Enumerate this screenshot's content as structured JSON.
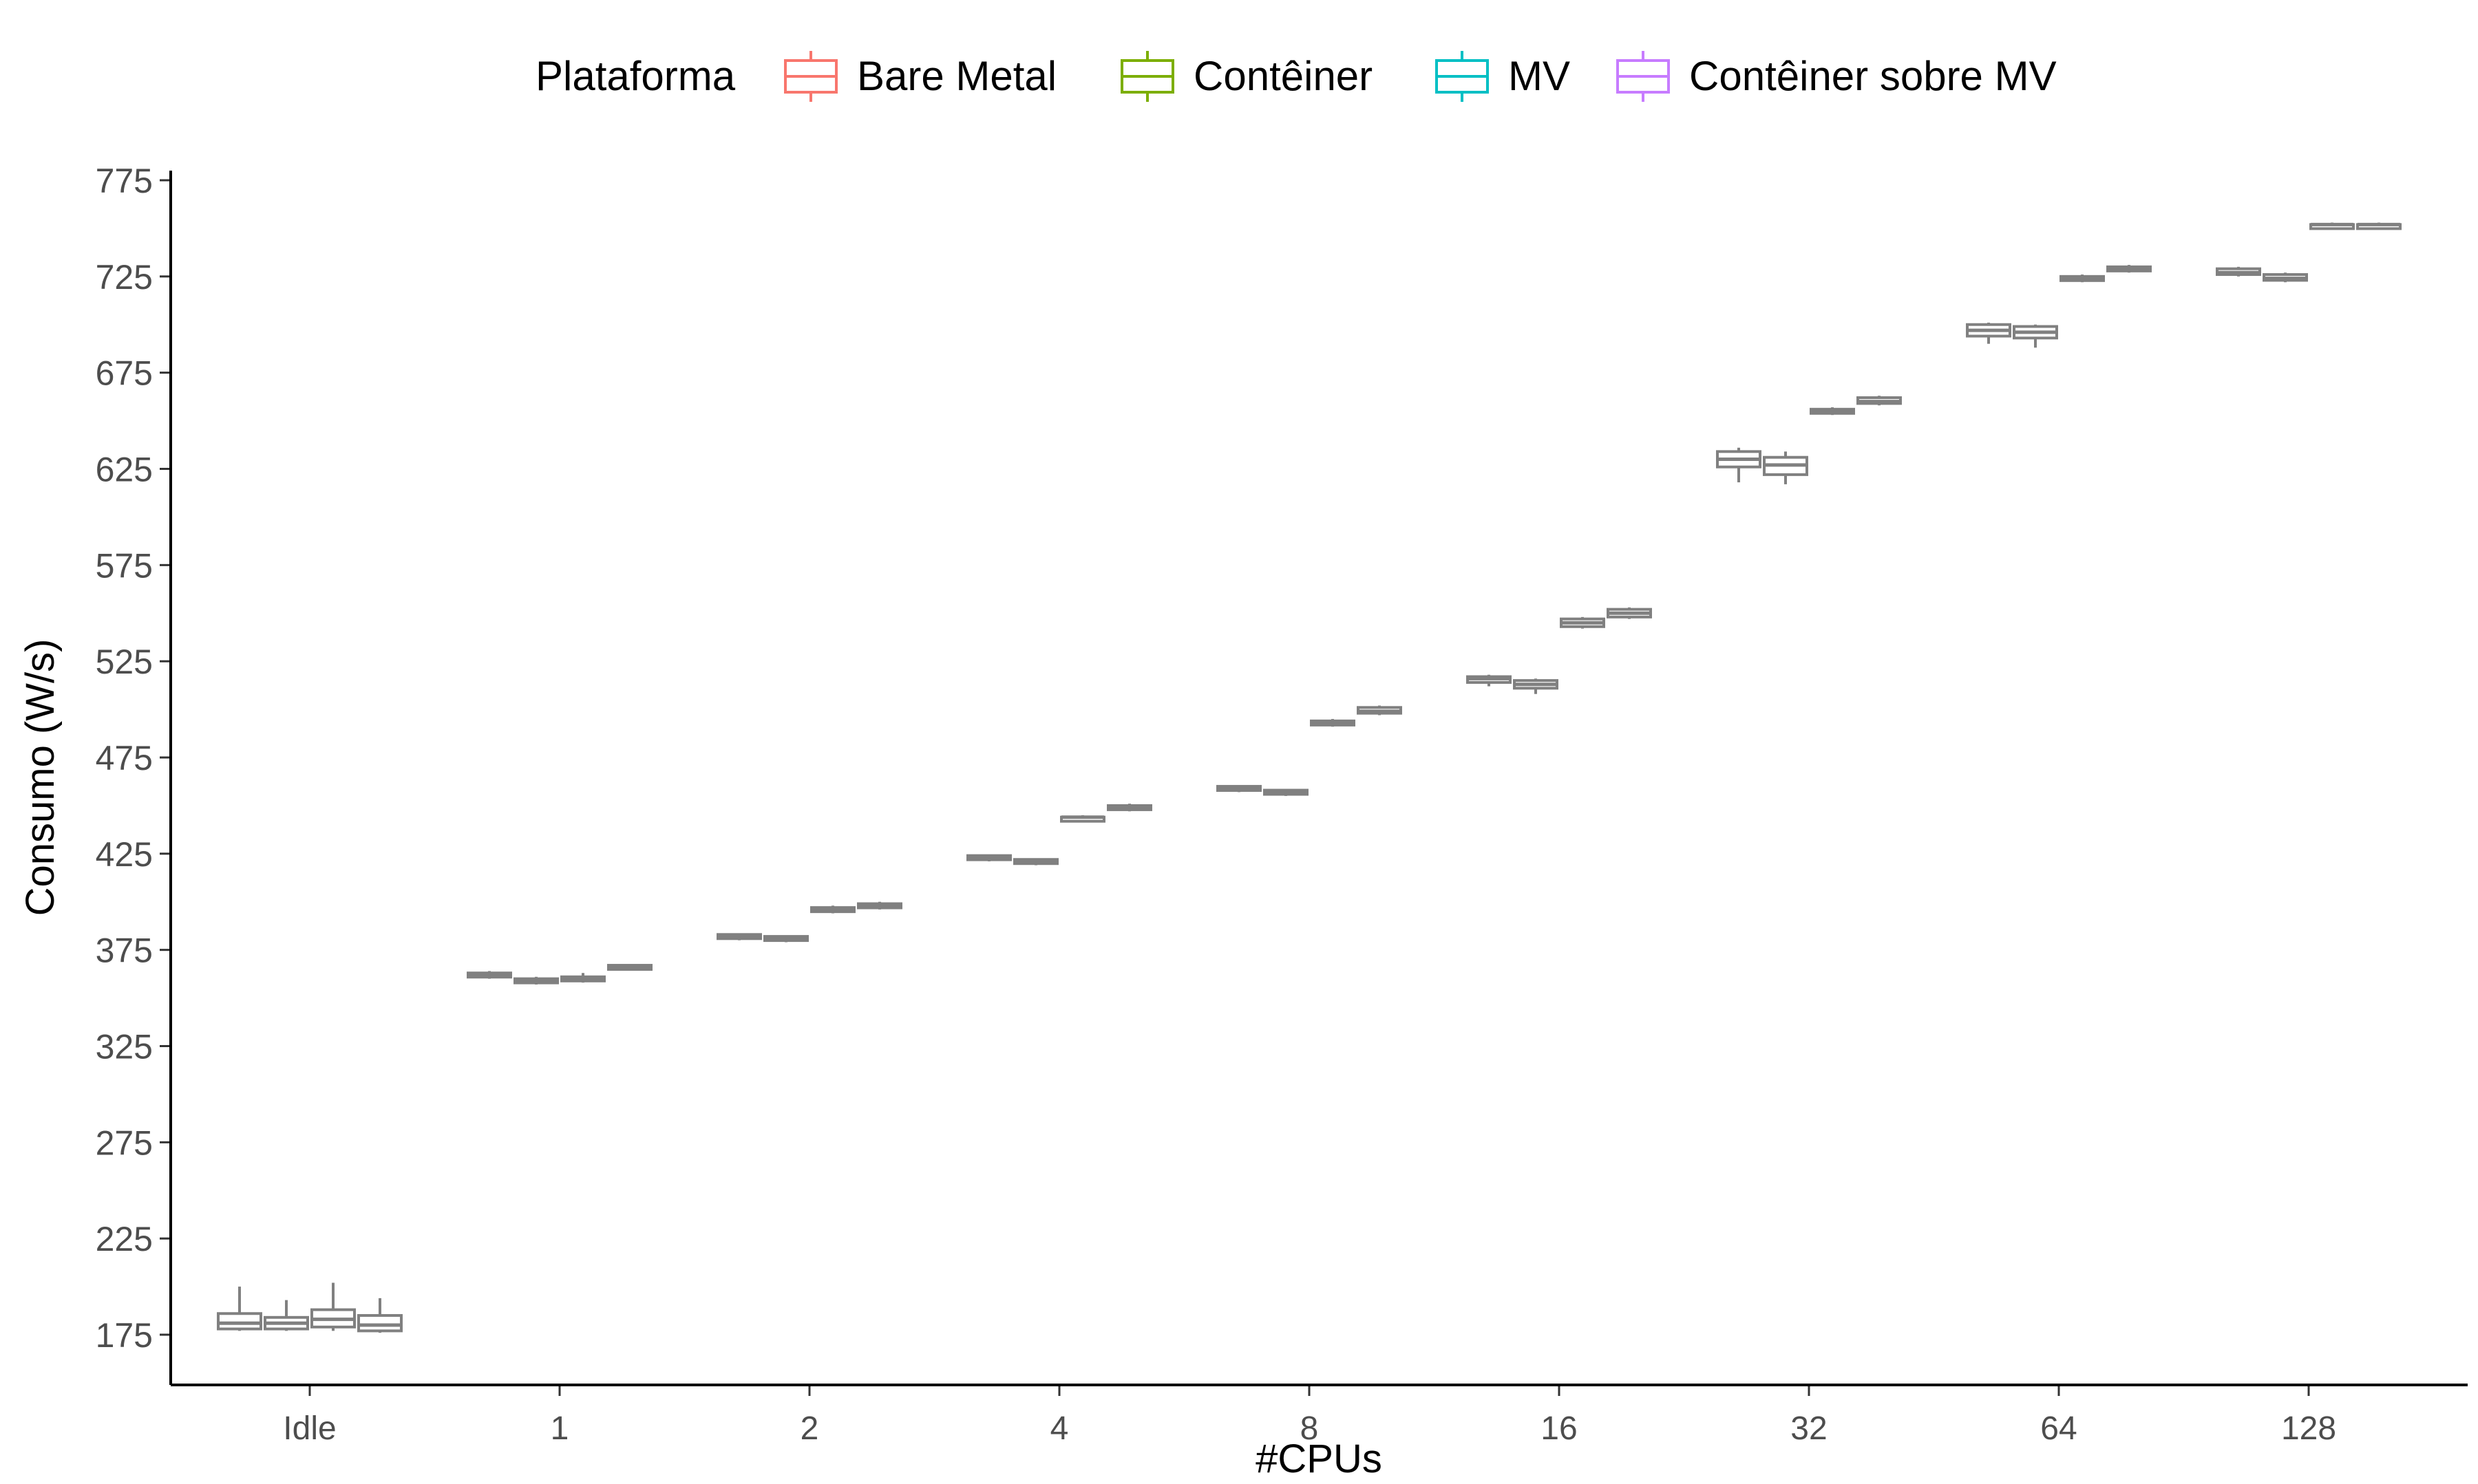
{
  "chart_data": {
    "type": "boxplot",
    "legend": {
      "title": "Plataforma",
      "position": "top",
      "items": [
        {
          "label": "Bare Metal",
          "color": "#F8766D"
        },
        {
          "label": "Contêiner",
          "color": "#7CAE00"
        },
        {
          "label": "MV",
          "color": "#00BFC4"
        },
        {
          "label": "Contêiner sobre MV",
          "color": "#C77CFF"
        }
      ]
    },
    "box_color": "#808080",
    "xlabel": "#CPUs",
    "ylabel": "Consumo (W/s)",
    "ylim": [
      150,
      778
    ],
    "yticks": [
      175,
      225,
      275,
      325,
      375,
      425,
      475,
      525,
      575,
      625,
      675,
      725,
      775
    ],
    "categories": [
      "Idle",
      "1",
      "2",
      "4",
      "8",
      "16",
      "32",
      "64",
      "128"
    ],
    "groups": [
      {
        "category": "Idle",
        "boxes": [
          {
            "series": "Bare Metal",
            "whislo": 177,
            "q1": 178,
            "med": 181,
            "q3": 186,
            "whishi": 200
          },
          {
            "series": "Contêiner",
            "whislo": 177,
            "q1": 178,
            "med": 181,
            "q3": 184,
            "whishi": 193
          },
          {
            "series": "MV",
            "whislo": 177,
            "q1": 179,
            "med": 183,
            "q3": 188,
            "whishi": 202
          },
          {
            "series": "Contêiner sobre MV",
            "whislo": 176,
            "q1": 177,
            "med": 180,
            "q3": 185,
            "whishi": 194
          }
        ]
      },
      {
        "category": "1",
        "boxes": [
          {
            "series": "Bare Metal",
            "whislo": 360,
            "q1": 361,
            "med": 362,
            "q3": 363,
            "whishi": 364
          },
          {
            "series": "Contêiner",
            "whislo": 357,
            "q1": 358,
            "med": 359,
            "q3": 360,
            "whishi": 361
          },
          {
            "series": "MV",
            "whislo": 358,
            "q1": 359,
            "med": 360,
            "q3": 361,
            "whishi": 363
          },
          {
            "series": "Contêiner sobre MV",
            "whislo": 365,
            "q1": 365,
            "med": 366,
            "q3": 367,
            "whishi": 367
          }
        ]
      },
      {
        "category": "2",
        "boxes": [
          {
            "series": "Bare Metal",
            "whislo": 380,
            "q1": 381,
            "med": 382,
            "q3": 383,
            "whishi": 383
          },
          {
            "series": "Contêiner",
            "whislo": 379,
            "q1": 380,
            "med": 381,
            "q3": 382,
            "whishi": 382
          },
          {
            "series": "MV",
            "whislo": 394,
            "q1": 395,
            "med": 396,
            "q3": 397,
            "whishi": 398
          },
          {
            "series": "Contêiner sobre MV",
            "whislo": 396,
            "q1": 397,
            "med": 398,
            "q3": 399,
            "whishi": 400
          }
        ]
      },
      {
        "category": "4",
        "boxes": [
          {
            "series": "Bare Metal",
            "whislo": 421,
            "q1": 422,
            "med": 423,
            "q3": 424,
            "whishi": 424
          },
          {
            "series": "Contêiner",
            "whislo": 419,
            "q1": 420,
            "med": 421,
            "q3": 422,
            "whishi": 422
          },
          {
            "series": "MV",
            "whislo": 442,
            "q1": 443,
            "med": 444,
            "q3": 444,
            "whishi": 445
          },
          {
            "series": "Contêiner sobre MV",
            "whislo": 447,
            "q1": 448,
            "med": 449,
            "q3": 450,
            "whishi": 451
          }
        ]
      },
      {
        "category": "8",
        "boxes": [
          {
            "series": "Bare Metal",
            "whislo": 457,
            "q1": 458,
            "med": 459,
            "q3": 460,
            "whishi": 460
          },
          {
            "series": "Contêiner",
            "whislo": 455,
            "q1": 456,
            "med": 457,
            "q3": 458,
            "whishi": 458
          },
          {
            "series": "MV",
            "whislo": 491,
            "q1": 492,
            "med": 493,
            "q3": 494,
            "whishi": 495
          },
          {
            "series": "Contêiner sobre MV",
            "whislo": 497,
            "q1": 498,
            "med": 499,
            "q3": 501,
            "whishi": 502
          }
        ]
      },
      {
        "category": "16",
        "boxes": [
          {
            "series": "Bare Metal",
            "whislo": 512,
            "q1": 514,
            "med": 516,
            "q3": 517,
            "whishi": 518
          },
          {
            "series": "Contêiner",
            "whislo": 508,
            "q1": 511,
            "med": 513,
            "q3": 515,
            "whishi": 516
          },
          {
            "series": "MV",
            "whislo": 542,
            "q1": 543,
            "med": 545,
            "q3": 547,
            "whishi": 548
          },
          {
            "series": "Contêiner sobre MV",
            "whislo": 547,
            "q1": 548,
            "med": 550,
            "q3": 552,
            "whishi": 553
          }
        ]
      },
      {
        "category": "32",
        "boxes": [
          {
            "series": "Bare Metal",
            "whislo": 618,
            "q1": 626,
            "med": 630,
            "q3": 634,
            "whishi": 636
          },
          {
            "series": "Contêiner",
            "whislo": 617,
            "q1": 622,
            "med": 627,
            "q3": 631,
            "whishi": 634
          },
          {
            "series": "MV",
            "whislo": 653,
            "q1": 654,
            "med": 655,
            "q3": 656,
            "whishi": 657
          },
          {
            "series": "Contêiner sobre MV",
            "whislo": 658,
            "q1": 659,
            "med": 660,
            "q3": 662,
            "whishi": 663
          }
        ]
      },
      {
        "category": "64",
        "boxes": [
          {
            "series": "Bare Metal",
            "whislo": 690,
            "q1": 694,
            "med": 697,
            "q3": 700,
            "whishi": 701
          },
          {
            "series": "Contêiner",
            "whislo": 688,
            "q1": 693,
            "med": 696,
            "q3": 699,
            "whishi": 700
          },
          {
            "series": "MV",
            "whislo": 722,
            "q1": 723,
            "med": 724,
            "q3": 725,
            "whishi": 726
          },
          {
            "series": "Contêiner sobre MV",
            "whislo": 727,
            "q1": 728,
            "med": 729,
            "q3": 730,
            "whishi": 731
          }
        ]
      },
      {
        "category": "128",
        "boxes": [
          {
            "series": "Bare Metal",
            "whislo": 725,
            "q1": 726,
            "med": 727,
            "q3": 729,
            "whishi": 730
          },
          {
            "series": "Contêiner",
            "whislo": 722,
            "q1": 723,
            "med": 724,
            "q3": 726,
            "whishi": 727
          },
          {
            "series": "MV",
            "whislo": 750,
            "q1": 751,
            "med": 752,
            "q3": 752,
            "whishi": 753
          },
          {
            "series": "Contêiner sobre MV",
            "whislo": 750,
            "q1": 751,
            "med": 752,
            "q3": 752,
            "whishi": 753
          }
        ]
      }
    ]
  }
}
